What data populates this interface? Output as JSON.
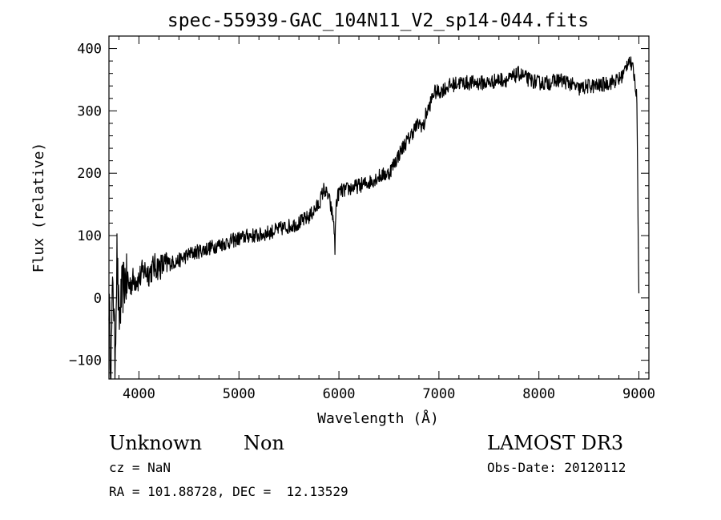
{
  "chart_data": {
    "type": "line",
    "title": "spec-55939-GAC_104N11_V2_sp14-044.fits",
    "xlabel": "Wavelength (Å)",
    "ylabel": "Flux (relative)",
    "xlim": [
      3700,
      9100
    ],
    "ylim": [
      -130,
      420
    ],
    "xticks": [
      4000,
      5000,
      6000,
      7000,
      8000,
      9000
    ],
    "yticks": [
      -100,
      0,
      100,
      200,
      300,
      400
    ],
    "ytick_labels": [
      "−100",
      "0",
      "100",
      "200",
      "300",
      "400"
    ],
    "grid": false,
    "legend": "none",
    "line_color": "#000000",
    "series": [
      {
        "x": [
          3700,
          3720,
          3740,
          3760,
          3780,
          3800,
          3830,
          3860,
          3900,
          3950,
          4000,
          4050,
          4100,
          4150,
          4200,
          4300,
          4400,
          4500,
          4600,
          4700,
          4800,
          4900,
          5000,
          5100,
          5200,
          5300,
          5400,
          5500,
          5600,
          5700,
          5800,
          5850,
          5900,
          5950,
          5960,
          5970,
          6000,
          6100,
          6200,
          6300,
          6400,
          6500,
          6550,
          6600,
          6650,
          6700,
          6750,
          6800,
          6850,
          6870,
          6900,
          6950,
          7000,
          7050,
          7100,
          7200,
          7300,
          7400,
          7500,
          7600,
          7700,
          7800,
          7850,
          7900,
          8000,
          8100,
          8200,
          8300,
          8400,
          8500,
          8600,
          8700,
          8800,
          8850,
          8900,
          8950,
          8980,
          9000
        ],
        "y": [
          0,
          -120,
          40,
          -100,
          70,
          -40,
          10,
          30,
          20,
          30,
          30,
          45,
          40,
          50,
          50,
          55,
          60,
          70,
          75,
          80,
          85,
          90,
          95,
          100,
          100,
          105,
          110,
          115,
          120,
          130,
          150,
          175,
          160,
          120,
          75,
          150,
          170,
          175,
          180,
          185,
          195,
          200,
          215,
          230,
          245,
          255,
          270,
          280,
          275,
          295,
          305,
          330,
          330,
          335,
          340,
          345,
          345,
          345,
          345,
          350,
          350,
          360,
          355,
          350,
          345,
          345,
          350,
          345,
          335,
          340,
          340,
          345,
          350,
          360,
          385,
          360,
          320,
          0
        ]
      }
    ]
  },
  "info": {
    "object_class": "Unknown",
    "subclass": "Non",
    "survey": "LAMOST DR3",
    "cz": "cz = NaN",
    "obs_date": "Obs-Date: 20120112",
    "coordinates": "RA = 101.88728, DEC =  12.13529"
  }
}
